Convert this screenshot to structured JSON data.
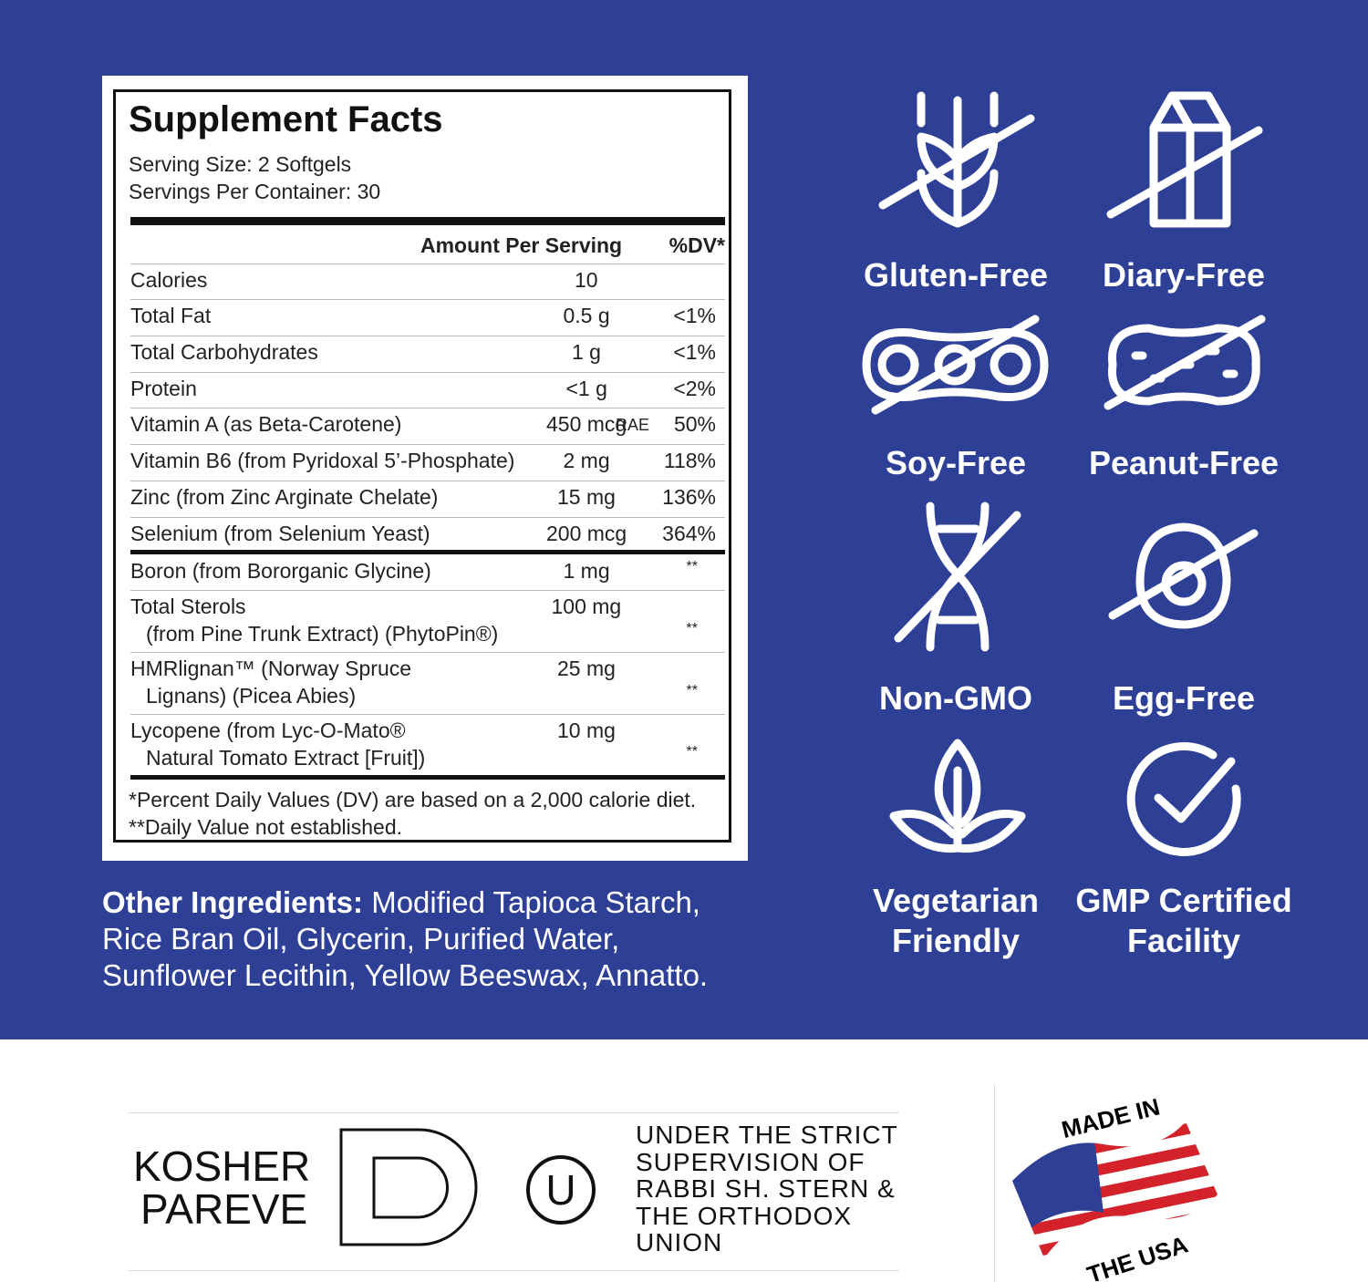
{
  "facts": {
    "title": "Supplement Facts",
    "serving_size": "Serving Size: 2 Softgels",
    "servings_per_container": "Servings Per Container: 30",
    "header": {
      "amount": "Amount Per Serving",
      "dv": "%DV*"
    },
    "rows": [
      {
        "name": [
          "Calories"
        ],
        "amount": "10",
        "dv": null
      },
      {
        "name": [
          "Total Fat"
        ],
        "amount": "0.5 g",
        "dv": "<1%"
      },
      {
        "name": [
          "Total Carbohydrates"
        ],
        "amount": "1 g",
        "dv": "<1%"
      },
      {
        "name": [
          "Protein"
        ],
        "amount": "<1 g",
        "dv": "<2%"
      },
      {
        "name": [
          "Vitamin A (as Beta-Carotene)"
        ],
        "amount": "450 mcg",
        "unit": "RAE",
        "dv": "50%"
      },
      {
        "name": [
          "Vitamin B6 (from Pyridoxal 5’-Phosphate)"
        ],
        "amount": "2 mg",
        "dv": "118%"
      },
      {
        "name": [
          "Zinc (from Zinc Arginate Chelate)"
        ],
        "amount": "15 mg",
        "dv": "136%"
      },
      {
        "name": [
          "Selenium (from Selenium Yeast)"
        ],
        "amount": "200 mcg",
        "dv": "364%"
      }
    ],
    "other_rows": [
      {
        "name": [
          "Boron (from Bororganic Glycine)"
        ],
        "amount": "1 mg",
        "dv": "**"
      },
      {
        "name": [
          "Total Sterols",
          "(from  Pine Trunk Extract) (PhytoPin®)"
        ],
        "amount": "100 mg",
        "dv": "**"
      },
      {
        "name": [
          "HMRlignan™ (Norway Spruce",
          "Lignans) (Picea Abies)"
        ],
        "amount": "25 mg",
        "dv": "**"
      },
      {
        "name": [
          "Lycopene (from Lyc-O-Mato®",
          "Natural Tomato Extract [Fruit])"
        ],
        "amount": "10 mg",
        "dv": "**"
      }
    ],
    "footnotes": [
      "*Percent Daily Values (DV) are based on a 2,000 calorie diet.",
      "**Daily Value not established."
    ]
  },
  "other_ingredients": {
    "label": "Other Ingredients:",
    "text": "Modified Tapioca Starch, Rice Bran Oil, Glycerin, Purified Water, Sunflower Lecithin, Yellow Beeswax, Annatto."
  },
  "badges": [
    "Gluten-Free",
    "Diary-Free",
    "Soy-Free",
    "Peanut-Free",
    "Non-GMO",
    "Egg-Free",
    "Vegetarian Friendly",
    "GMP Certified Facility"
  ],
  "certification": {
    "kosher": [
      "KOSHER",
      "PAREVE"
    ],
    "ou_symbol": "U",
    "supervision": "UNDER THE STRICT SUPERVISION OF RABBI SH. STERN & THE ORTHODOX UNION",
    "made_in": "MADE IN",
    "the_usa": "THE USA"
  }
}
